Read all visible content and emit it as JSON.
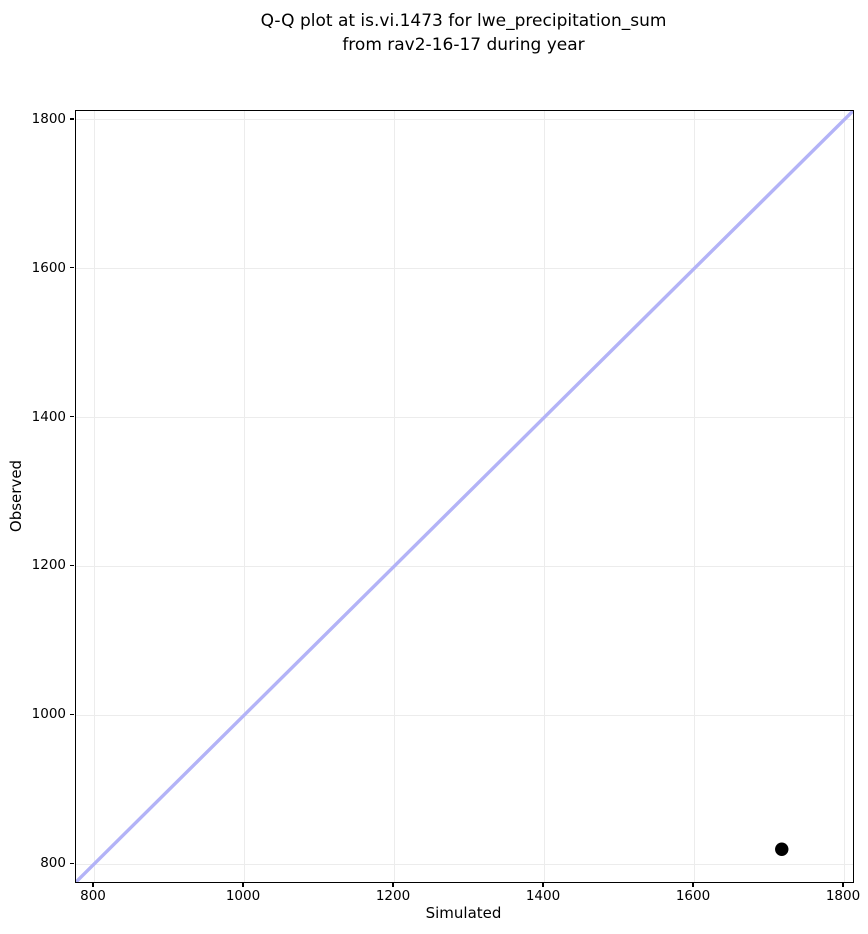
{
  "chart_data": {
    "type": "scatter",
    "title_lines": [
      "Q-Q plot at is.vi.1473 for lwe_precipitation_sum",
      "from rav2-16-17 during year"
    ],
    "xlabel": "Simulated",
    "ylabel": "Observed",
    "xlim": [
      776,
      1812
    ],
    "ylim": [
      776,
      1812
    ],
    "xticks": [
      800,
      1000,
      1200,
      1400,
      1600,
      1800
    ],
    "yticks": [
      800,
      1000,
      1200,
      1400,
      1600,
      1800
    ],
    "grid": true,
    "legend": "none",
    "series": [
      {
        "name": "identity-line",
        "type": "line",
        "color": "#b3b3f7",
        "x": [
          776,
          1812
        ],
        "y": [
          776,
          1812
        ]
      },
      {
        "name": "quantile-points",
        "type": "scatter",
        "color": "#000000",
        "points": [
          {
            "x": 1717,
            "y": 820
          }
        ]
      }
    ]
  },
  "colors": {
    "background": "#ffffff",
    "grid": "#ececec",
    "spine": "#000000",
    "text": "#000000"
  }
}
